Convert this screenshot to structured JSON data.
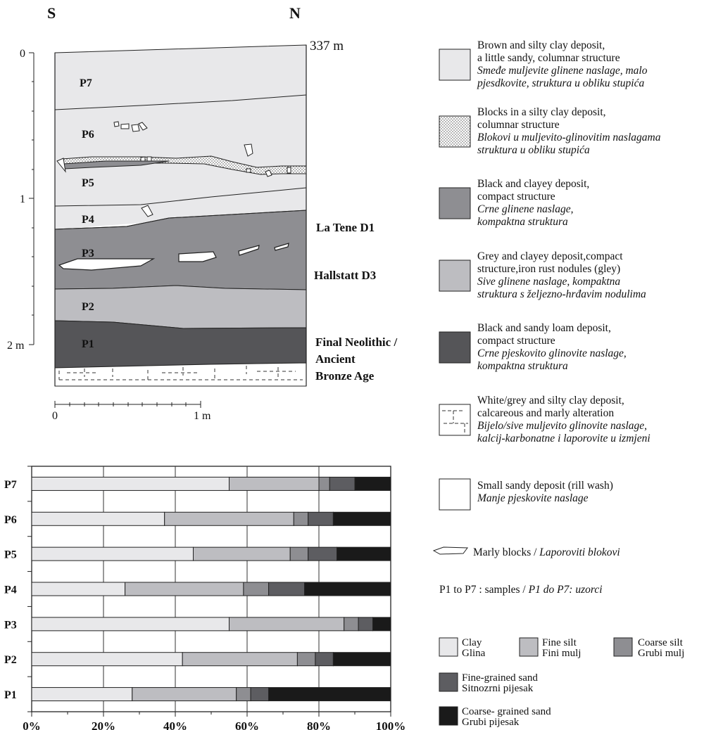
{
  "profile": {
    "orientation": {
      "left": "S",
      "right": "N"
    },
    "altitude": "337 m",
    "depth_labels": [
      "0",
      "1",
      "2 m"
    ],
    "samples": [
      "P7",
      "P6",
      "P5",
      "P4",
      "P3",
      "P2",
      "P1"
    ],
    "period_labels": {
      "la_tene": "La Tene D1",
      "hallstatt": "Hallstatt D3",
      "neolithic": [
        "Final Neolithic /",
        "Ancient",
        "Bronze Age"
      ]
    },
    "scale_bar": {
      "start": "0",
      "end": "1 m"
    }
  },
  "legend": [
    {
      "id": "brown",
      "color": "#e8e8ea",
      "pattern": "solid",
      "lines": [
        "Brown and silty clay deposit,",
        "a little sandy, columnar structure"
      ],
      "lines_italic": [
        "Smeđe muljevite glinene naslage, malo",
        "pjesdkovite, struktura u obliku stupića"
      ]
    },
    {
      "id": "blocks",
      "color": "#ffffff",
      "pattern": "dots",
      "lines": [
        "Blocks in a silty clay deposit,",
        "columnar structure"
      ],
      "lines_italic": [
        "Blokovi u muljevito-glinovitim naslagama",
        "struktura u obliku stupića"
      ]
    },
    {
      "id": "black-clayey",
      "color": "#8e8e92",
      "pattern": "solid",
      "lines": [
        "Black and clayey deposit,",
        "compact structure"
      ],
      "lines_italic": [
        "Crne glinene naslage,",
        "kompaktna struktura"
      ]
    },
    {
      "id": "grey-clayey",
      "color": "#bdbdc1",
      "pattern": "solid",
      "lines": [
        "Grey and clayey deposit,compact",
        "structure,iron rust nodules (gley)"
      ],
      "lines_italic": [
        "Sive glinene naslage, kompaktna",
        "struktura s željezno-hrđavim nodulima"
      ]
    },
    {
      "id": "black-sandy",
      "color": "#555558",
      "pattern": "solid",
      "lines": [
        "Black and sandy loam deposit,",
        "compact structure"
      ],
      "lines_italic": [
        "Crne pjeskovito glinovite naslage,",
        "kompaktna struktura"
      ]
    },
    {
      "id": "white-grey",
      "color": "#ffffff",
      "pattern": "dashed",
      "lines": [
        "White/grey and silty clay deposit,",
        "calcareous and marly alteration"
      ],
      "lines_italic": [
        "Bijelo/sive muljevito glinovite naslage,",
        "kalcij-karbonatne i laporovite u izmjeni"
      ]
    },
    {
      "id": "small-sandy",
      "color": "#ffffff",
      "pattern": "solid",
      "lines": [
        "Small sandy deposit (rill wash)"
      ],
      "lines_italic": [
        "Manje pjeskovite naslage"
      ]
    }
  ],
  "marly_legend": {
    "text": "Marly blocks / ",
    "text_italic": "Laporoviti blokovi"
  },
  "samples_note": {
    "text": "P1 to P7 : samples / ",
    "text_italic": "P1 do P7: uzorci"
  },
  "grain_legend": [
    {
      "id": "clay",
      "color": "#e8e8ea",
      "en": "Clay",
      "hr": "Glina"
    },
    {
      "id": "fine-silt",
      "color": "#bdbdc1",
      "en": "Fine silt",
      "hr": "Fini mulj"
    },
    {
      "id": "coarse-silt",
      "color": "#8e8e92",
      "en": "Coarse silt",
      "hr": "Grubi mulj"
    },
    {
      "id": "fine-sand",
      "color": "#5d5d61",
      "en": "Fine-grained sand",
      "hr": "Sitnozrni pijesak"
    },
    {
      "id": "coarse-sand",
      "color": "#1a1a1a",
      "en": "Coarse- grained sand",
      "hr": "Grubi pijesak"
    }
  ],
  "chart_data": {
    "type": "bar",
    "orientation": "horizontal",
    "stacked": true,
    "categories": [
      "P7",
      "P6",
      "P5",
      "P4",
      "P3",
      "P2",
      "P1"
    ],
    "xlim": [
      0,
      100
    ],
    "xticks": [
      "0%",
      "20%",
      "40%",
      "60%",
      "80%",
      "100%"
    ],
    "grid": true,
    "series": [
      {
        "name": "Clay",
        "color": "#e8e8ea",
        "values": [
          55,
          37,
          45,
          26,
          55,
          42,
          28
        ]
      },
      {
        "name": "Fine silt",
        "color": "#bdbdc1",
        "values": [
          25,
          36,
          27,
          33,
          32,
          32,
          29
        ]
      },
      {
        "name": "Coarse silt",
        "color": "#8e8e92",
        "values": [
          3,
          4,
          5,
          7,
          4,
          5,
          4
        ]
      },
      {
        "name": "Fine-grained sand",
        "color": "#5d5d61",
        "values": [
          7,
          7,
          8,
          10,
          4,
          5,
          5
        ]
      },
      {
        "name": "Coarse- grained sand",
        "color": "#1a1a1a",
        "values": [
          10,
          16,
          15,
          24,
          5,
          16,
          34
        ]
      }
    ]
  }
}
